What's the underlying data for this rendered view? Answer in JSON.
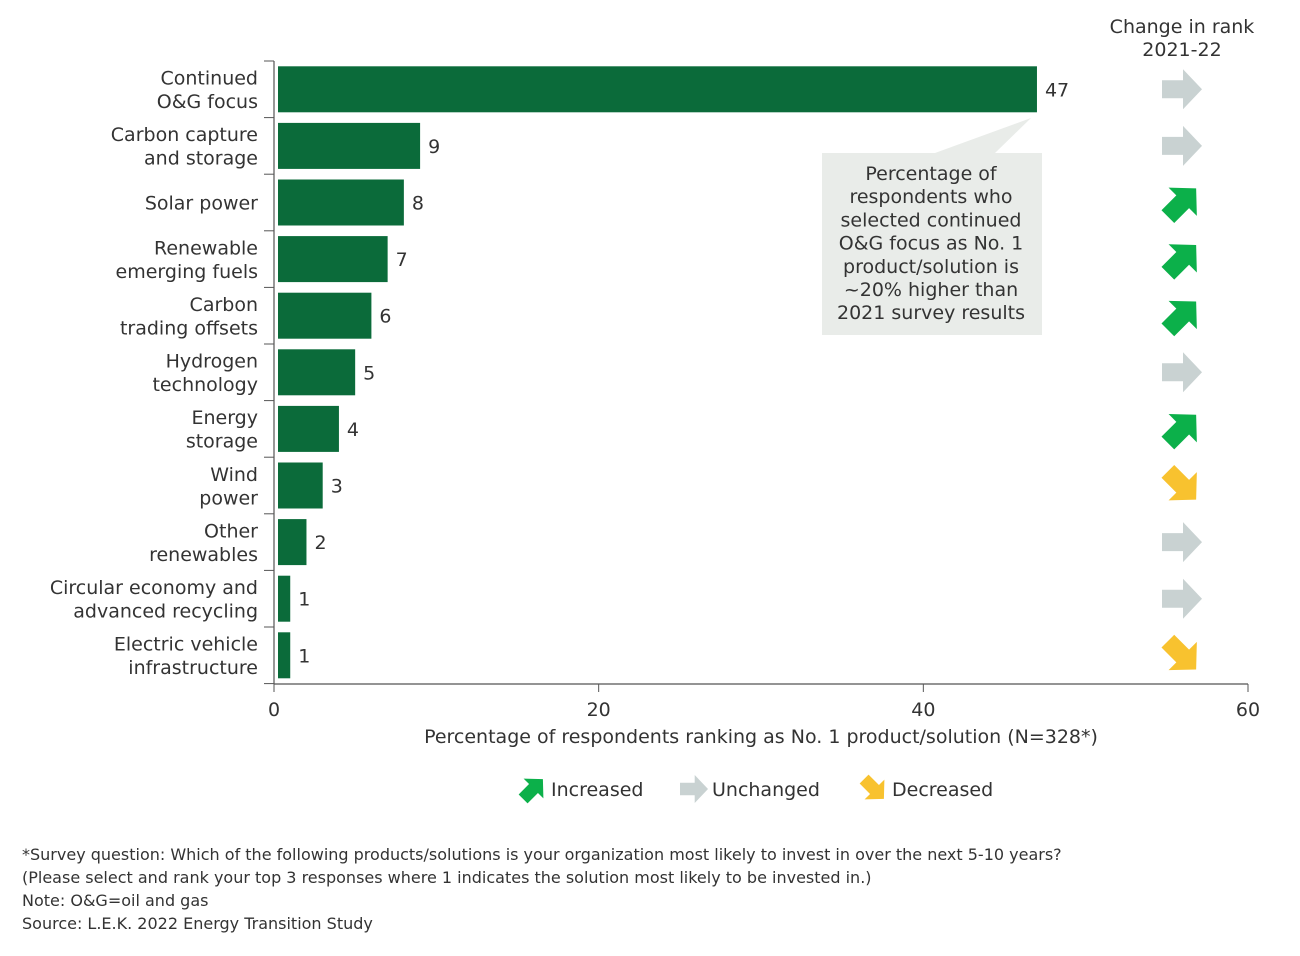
{
  "chart_data": {
    "type": "bar",
    "orientation": "horizontal",
    "categories": [
      [
        "Continued",
        "O&G focus"
      ],
      [
        "Carbon capture",
        "and storage"
      ],
      [
        "Solar power"
      ],
      [
        "Renewable",
        "emerging fuels"
      ],
      [
        "Carbon",
        "trading offsets"
      ],
      [
        "Hydrogen",
        "technology"
      ],
      [
        "Energy",
        "storage"
      ],
      [
        "Wind",
        "power"
      ],
      [
        "Other",
        "renewables"
      ],
      [
        "Circular economy and",
        "advanced recycling"
      ],
      [
        "Electric vehicle",
        "infrastructure"
      ]
    ],
    "values": [
      47,
      9,
      8,
      7,
      6,
      5,
      4,
      3,
      2,
      1,
      1
    ],
    "rank_change": [
      "unchanged",
      "unchanged",
      "increased",
      "increased",
      "increased",
      "unchanged",
      "increased",
      "decreased",
      "unchanged",
      "unchanged",
      "decreased"
    ],
    "xlabel": "Percentage of respondents ranking as No. 1 product/solution (N=328*)",
    "xlim": [
      0,
      60
    ],
    "xticks": [
      0,
      20,
      40,
      60
    ],
    "grid": false,
    "rank_header": [
      "Change in rank",
      "2021-22"
    ],
    "annotation": [
      "Percentage of",
      "respondents who",
      "selected continued",
      "O&G focus as No. 1",
      "product/solution is",
      "~20% higher than",
      "2021 survey results"
    ],
    "legend": {
      "placement": "bottom",
      "items": [
        {
          "key": "increased",
          "label": "Increased"
        },
        {
          "key": "unchanged",
          "label": "Unchanged"
        },
        {
          "key": "decreased",
          "label": "Decreased"
        }
      ]
    },
    "colors": {
      "bar": "#0b6b3a",
      "increased": "#0cb04a",
      "unchanged": "#c9d2d2",
      "decreased": "#f8c22f",
      "annotation_bg": "#e9ece9"
    }
  },
  "footnotes": [
    "*Survey question: Which of the following products/solutions is your organization most likely to invest in over the next 5-10 years?",
    "(Please select and rank your top 3 responses where 1 indicates the solution most likely to be invested in.)",
    "Note: O&G=oil and gas",
    "Source: L.E.K. 2022 Energy Transition Study"
  ]
}
